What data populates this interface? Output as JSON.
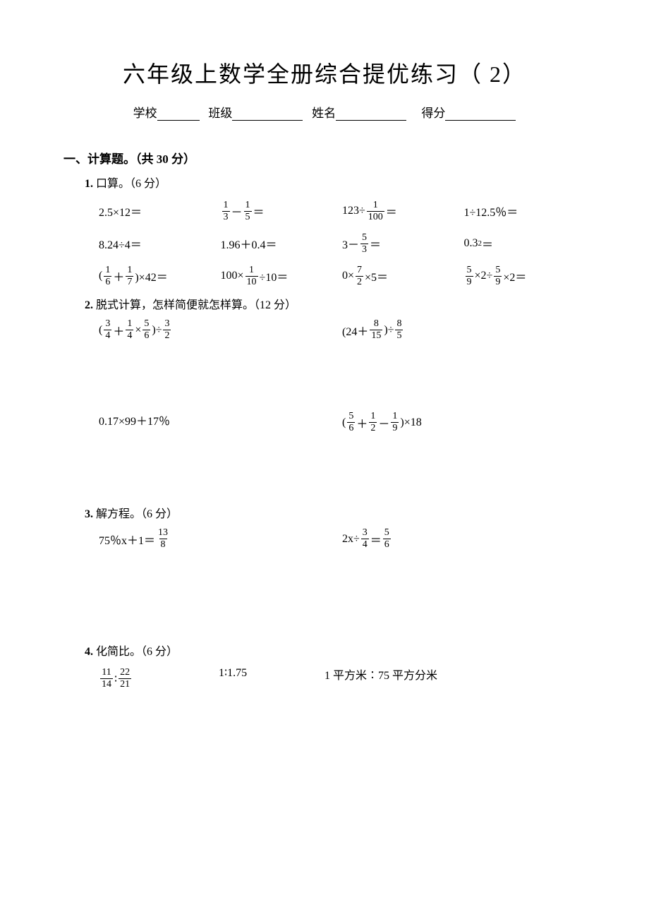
{
  "title": "六年级上数学全册综合提优练习（ 2）",
  "header": {
    "school_label": "学校",
    "class_label": "班级",
    "name_label": "姓名",
    "score_label": "得分"
  },
  "section1": {
    "heading": "一、计算题。（共 30 分）",
    "sub1": {
      "num": "1.",
      "text": "口算。（6 分）",
      "row1": {
        "c1": "2.5×12＝",
        "c2_pre": "",
        "c2_f1n": "1",
        "c2_f1d": "3",
        "c2_mid": "－",
        "c2_f2n": "1",
        "c2_f2d": "5",
        "c2_post": "＝",
        "c3_pre": "123÷",
        "c3_f1n": "1",
        "c3_f1d": "100",
        "c3_post": "＝",
        "c4": "1÷12.5％＝"
      },
      "row2": {
        "c1": "8.24÷4＝",
        "c2": "1.96＋0.4＝",
        "c3_pre": "3－",
        "c3_f1n": "5",
        "c3_f1d": "3",
        "c3_post": "＝",
        "c4": "0.3²＝"
      },
      "row3": {
        "c1_pre": "(",
        "c1_f1n": "1",
        "c1_f1d": "6",
        "c1_mid": "＋",
        "c1_f2n": "1",
        "c1_f2d": "7",
        "c1_post": ")×42＝",
        "c2_pre": "100×",
        "c2_f1n": "1",
        "c2_f1d": "10",
        "c2_post": "÷10＝",
        "c3_pre": "0×",
        "c3_f1n": "7",
        "c3_f1d": "2",
        "c3_post": "×5＝",
        "c4_f1n": "5",
        "c4_f1d": "9",
        "c4_mid": "×2÷",
        "c4_f2n": "5",
        "c4_f2d": "9",
        "c4_post": "×2＝"
      }
    },
    "sub2": {
      "num": "2.",
      "text": "脱式计算，怎样简便就怎样算。（12 分）",
      "row1": {
        "a_pre": "(",
        "a_f1n": "3",
        "a_f1d": "4",
        "a_m1": "＋",
        "a_f2n": "1",
        "a_f2d": "4",
        "a_m2": "×",
        "a_f3n": "5",
        "a_f3d": "6",
        "a_m3": ")÷",
        "a_f4n": "3",
        "a_f4d": "2",
        "b_pre": "(24＋",
        "b_f1n": "8",
        "b_f1d": "15",
        "b_mid": ")÷",
        "b_f2n": "8",
        "b_f2d": "5"
      },
      "row2": {
        "a": "0.17×99＋17％",
        "b_pre": "(",
        "b_f1n": "5",
        "b_f1d": "6",
        "b_m1": "＋",
        "b_f2n": "1",
        "b_f2d": "2",
        "b_m2": "－",
        "b_f3n": "1",
        "b_f3d": "9",
        "b_post": ")×18"
      }
    },
    "sub3": {
      "num": "3.",
      "text": "解方程。（6 分）",
      "a_pre": "75％x＋1＝",
      "a_f1n": "13",
      "a_f1d": "8",
      "b_pre": "2x÷",
      "b_f1n": "3",
      "b_f1d": "4",
      "b_mid": "＝",
      "b_f2n": "5",
      "b_f2d": "6"
    },
    "sub4": {
      "num": "4.",
      "text": "化简比。（6 分）",
      "a_f1n": "11",
      "a_f1d": "14",
      "a_mid": "∶",
      "a_f2n": "22",
      "a_f2d": "21",
      "b": "1∶1.75",
      "c": "1 平方米∶75 平方分米"
    }
  }
}
